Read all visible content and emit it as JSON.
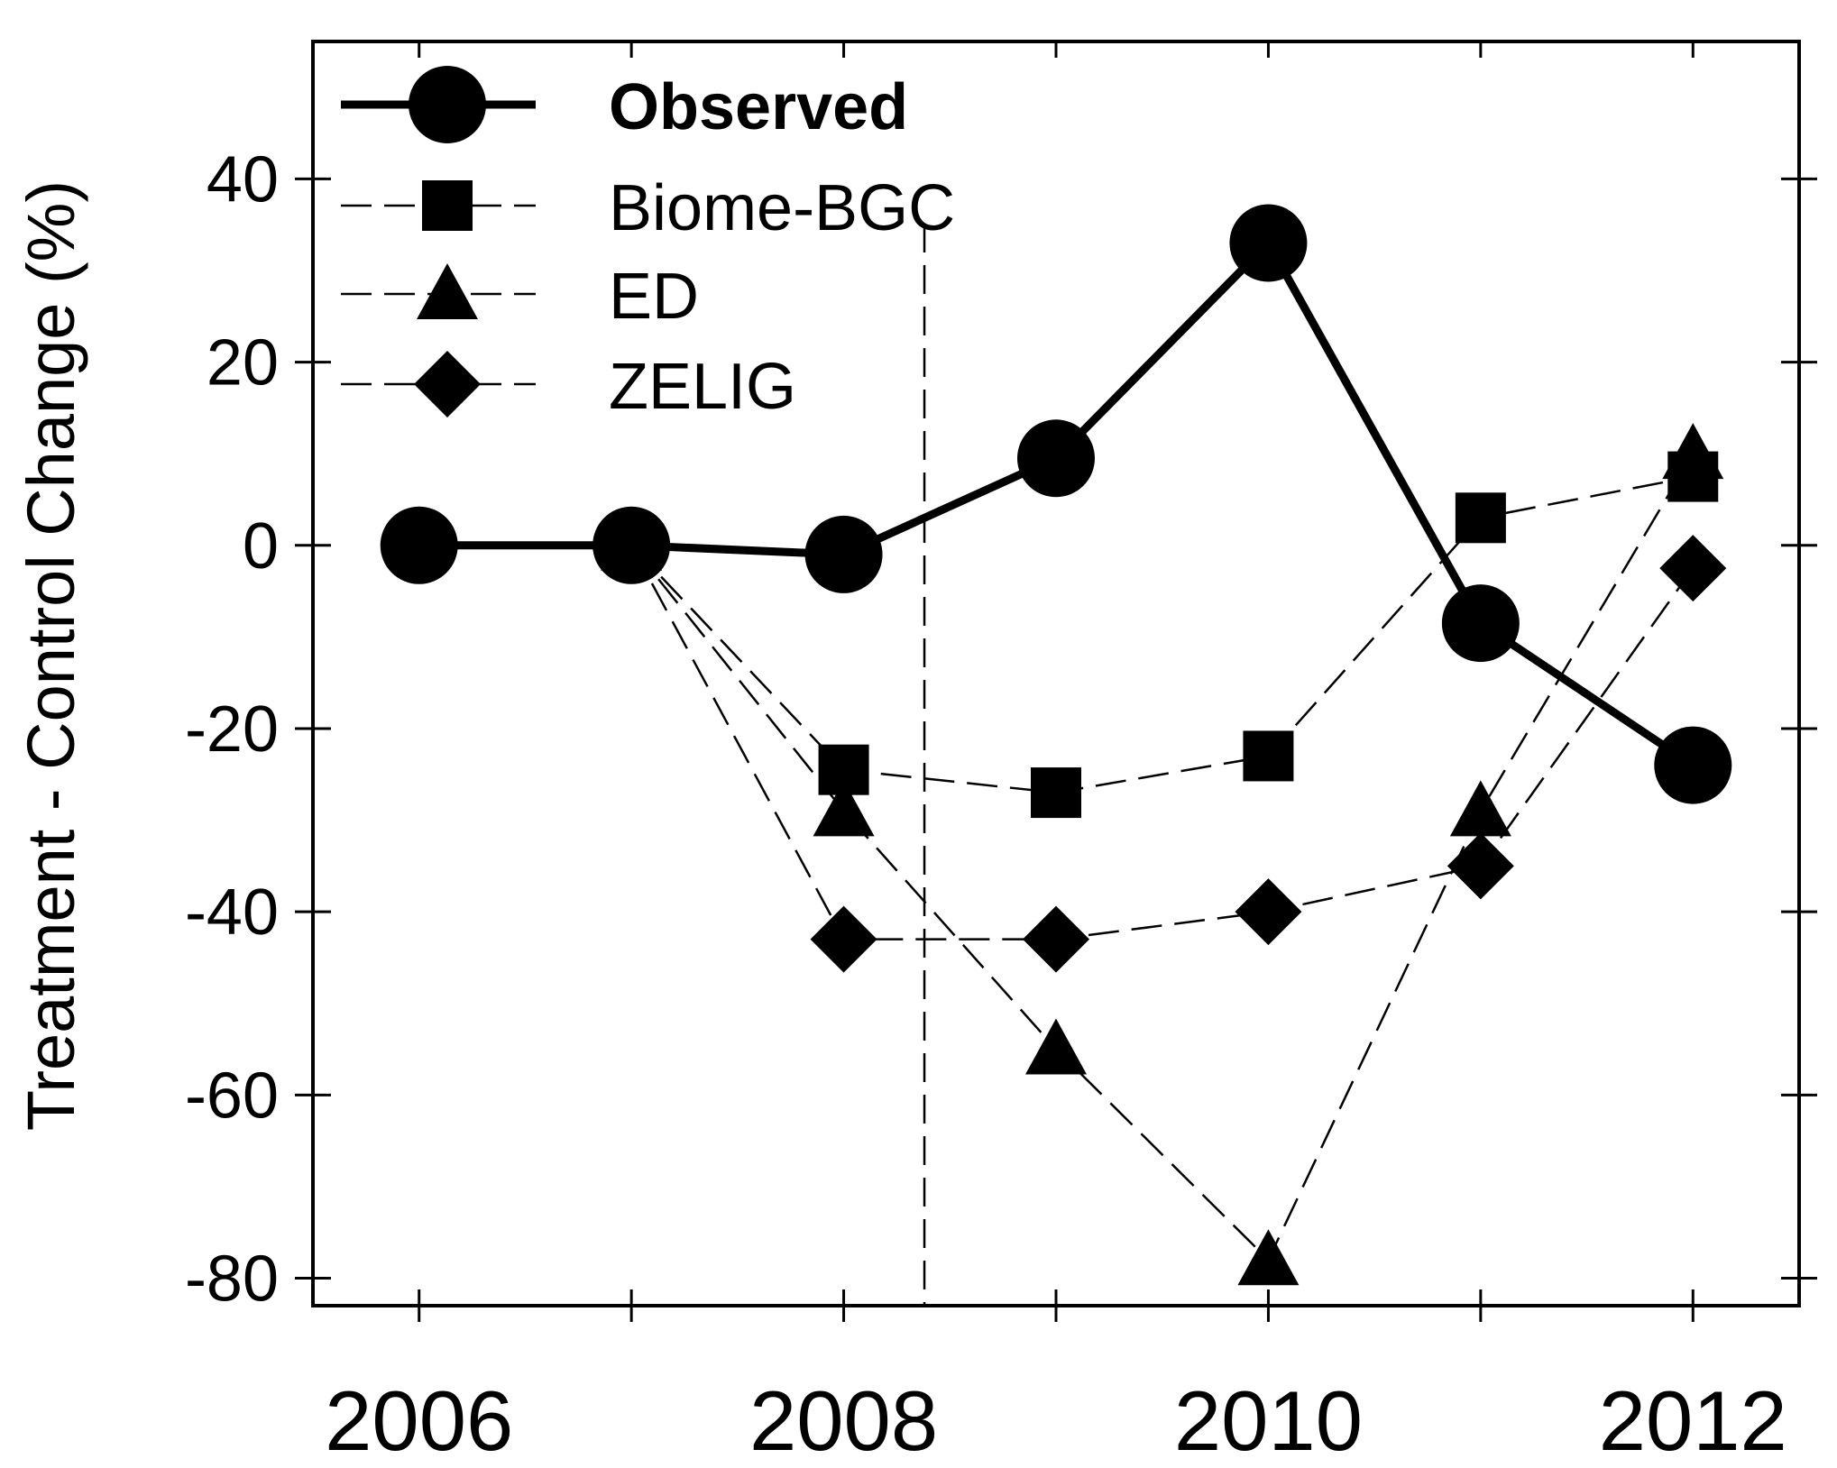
{
  "chart_data": {
    "type": "line",
    "title": "",
    "xlabel": "",
    "ylabel": "Treatment - Control Change (%)",
    "xlim": [
      2005.5,
      2012.5
    ],
    "ylim": [
      -83,
      55
    ],
    "x_ticks": [
      2006,
      2007,
      2008,
      2009,
      2010,
      2011,
      2012
    ],
    "x_tick_labels": [
      "2006",
      "",
      "2008",
      "",
      "2010",
      "",
      "2012"
    ],
    "y_ticks": [
      -80,
      -60,
      -40,
      -20,
      0,
      20,
      40
    ],
    "y_tick_labels": [
      "-80",
      "-60",
      "-40",
      "-20",
      "0",
      "20",
      "40"
    ],
    "grid": false,
    "legend_position": "top-left",
    "reference_line_x": 2008.38,
    "series": [
      {
        "name": "Observed",
        "marker": "circle",
        "line": "solid-thick",
        "x": [
          2006,
          2007,
          2008,
          2009,
          2010,
          2011,
          2012
        ],
        "values": [
          0,
          0,
          -1,
          9.5,
          33,
          -8.5,
          -24
        ]
      },
      {
        "name": "Biome-BGC",
        "marker": "square",
        "line": "dashed",
        "x": [
          2007,
          2008,
          2009,
          2010,
          2011,
          2012
        ],
        "values": [
          0,
          -24.5,
          -27,
          -23,
          3,
          7.5
        ]
      },
      {
        "name": "ED",
        "marker": "triangle",
        "line": "dashed",
        "x": [
          2007,
          2008,
          2009,
          2010,
          2011,
          2012
        ],
        "values": [
          0,
          -29,
          -55,
          -78,
          -29,
          10
        ]
      },
      {
        "name": "ZELIG",
        "marker": "diamond",
        "line": "dashed",
        "x": [
          2007,
          2008,
          2009,
          2010,
          2011,
          2012
        ],
        "values": [
          0,
          -43,
          -43,
          -40,
          -35,
          -2.5
        ]
      }
    ]
  }
}
